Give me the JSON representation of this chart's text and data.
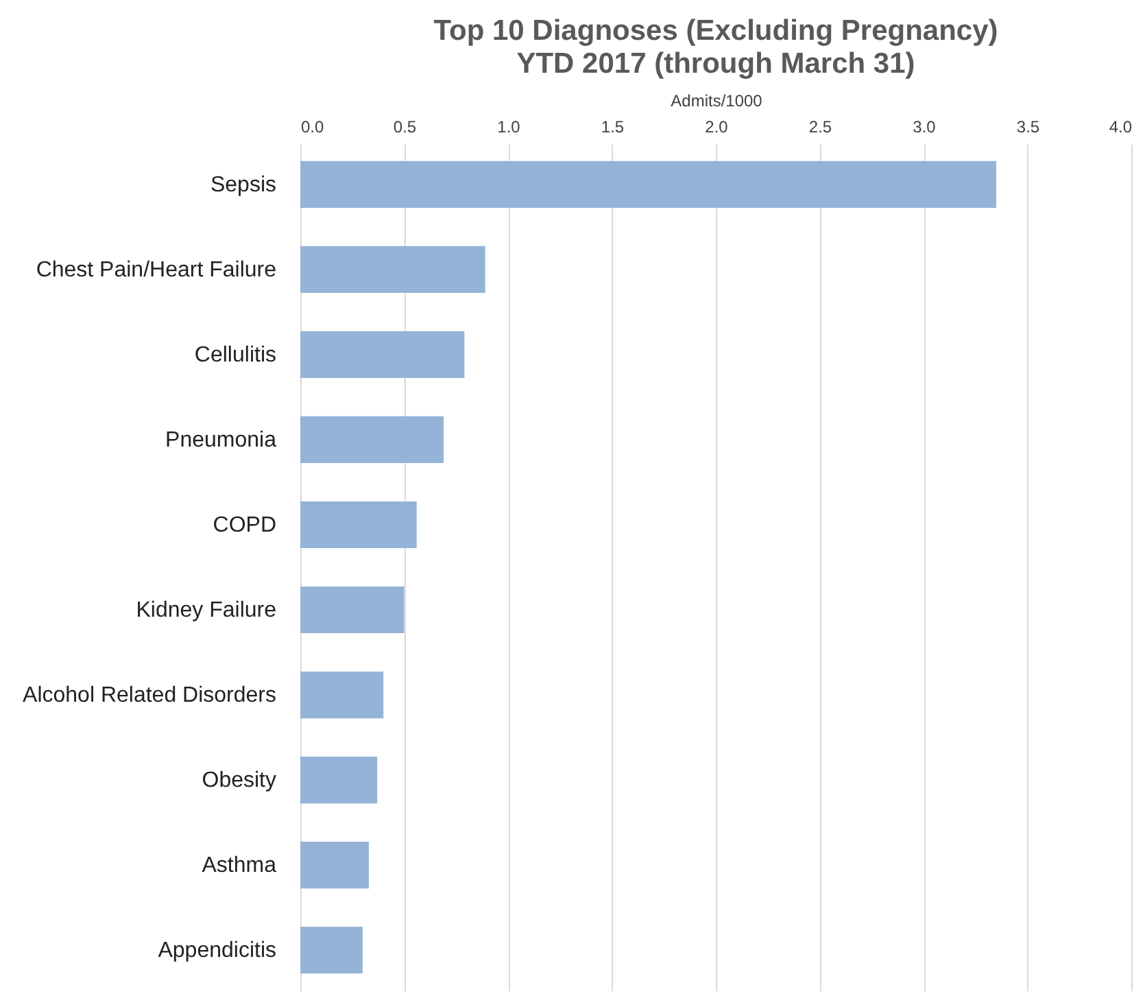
{
  "chart_data": {
    "type": "bar",
    "orientation": "horizontal",
    "title": "Top 10 Diagnoses (Excluding Pregnancy)",
    "subtitle": "YTD 2017 (through March 31)",
    "xlabel": "Admits/1000",
    "categories": [
      "Sepsis",
      "Chest Pain/Heart Failure",
      "Cellulitis",
      "Pneumonia",
      "COPD",
      "Kidney Failure",
      "Alcohol Related Disorders",
      "Obesity",
      "Asthma",
      "Appendicitis"
    ],
    "values": [
      3.35,
      0.89,
      0.79,
      0.69,
      0.56,
      0.5,
      0.4,
      0.37,
      0.33,
      0.3
    ],
    "color": "#95b3d7",
    "xlim": [
      0,
      4
    ],
    "xticks": [
      {
        "value": 0,
        "label": "0.0"
      },
      {
        "value": 0.5,
        "label": "0.5"
      },
      {
        "value": 1,
        "label": "1.0"
      },
      {
        "value": 1.5,
        "label": "1.5"
      },
      {
        "value": 2,
        "label": "2.0"
      },
      {
        "value": 2.5,
        "label": "2.5"
      },
      {
        "value": 3,
        "label": "3.0"
      },
      {
        "value": 3.5,
        "label": "3.5"
      },
      {
        "value": 4,
        "label": "4.0"
      }
    ],
    "grid": "x"
  }
}
